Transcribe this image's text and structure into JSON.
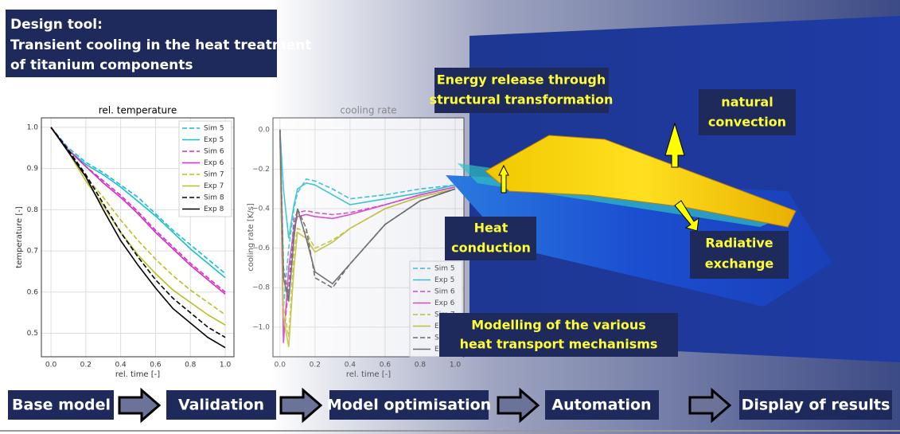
{
  "header": {
    "lines": [
      "Design tool:",
      "Transient cooling in the heat treatment",
      "of titanium components"
    ]
  },
  "chart_data": [
    {
      "type": "line",
      "title": "rel. temperature",
      "x_label": "rel. time [-]",
      "y_label": "temperature [-]",
      "x": [
        0,
        0.1,
        0.2,
        0.3,
        0.4,
        0.5,
        0.6,
        0.7,
        0.8,
        0.9,
        1.0
      ],
      "xlim": [
        -0.055,
        1.05
      ],
      "ylim": [
        0.443,
        1.023
      ],
      "xticks": [
        {
          "value": 0,
          "label": "0.0"
        },
        0.2,
        0.4,
        0.6,
        0.8,
        {
          "value": 1,
          "label": "1.0"
        }
      ],
      "yticks": [
        0.5,
        0.6,
        0.7,
        0.8,
        0.9,
        {
          "value": 1,
          "label": "1.0"
        }
      ],
      "grid": true,
      "legend": "upper right",
      "series": [
        {
          "name": "Sim 5",
          "color": "#17becf",
          "dash": true,
          "values": [
            1.0,
            0.95,
            0.915,
            0.89,
            0.86,
            0.83,
            0.79,
            0.75,
            0.715,
            0.68,
            0.645
          ]
        },
        {
          "name": "Exp 5",
          "color": "#17becf",
          "dash": false,
          "values": [
            1.0,
            0.945,
            0.91,
            0.885,
            0.855,
            0.82,
            0.785,
            0.745,
            0.705,
            0.67,
            0.635
          ]
        },
        {
          "name": "Sim 6",
          "color": "#d62bc8",
          "dash": true,
          "values": [
            1.0,
            0.945,
            0.905,
            0.87,
            0.835,
            0.795,
            0.75,
            0.71,
            0.67,
            0.635,
            0.6
          ]
        },
        {
          "name": "Exp 6",
          "color": "#d62bc8",
          "dash": false,
          "values": [
            1.0,
            0.945,
            0.905,
            0.865,
            0.83,
            0.79,
            0.745,
            0.705,
            0.665,
            0.63,
            0.595
          ]
        },
        {
          "name": "Sim 7",
          "color": "#bcbd22",
          "dash": true,
          "values": [
            1.0,
            0.94,
            0.88,
            0.83,
            0.775,
            0.725,
            0.68,
            0.64,
            0.605,
            0.575,
            0.545
          ]
        },
        {
          "name": "Exp 7",
          "color": "#bcbd22",
          "dash": false,
          "values": [
            1.0,
            0.94,
            0.87,
            0.81,
            0.745,
            0.69,
            0.645,
            0.605,
            0.575,
            0.545,
            0.52
          ]
        },
        {
          "name": "Sim 8",
          "color": "#000000",
          "dash": true,
          "values": [
            1.0,
            0.945,
            0.885,
            0.815,
            0.745,
            0.685,
            0.63,
            0.585,
            0.55,
            0.515,
            0.49
          ]
        },
        {
          "name": "Exp 8",
          "color": "#000000",
          "dash": false,
          "values": [
            1.0,
            0.94,
            0.88,
            0.8,
            0.725,
            0.665,
            0.61,
            0.56,
            0.525,
            0.49,
            0.465
          ]
        }
      ]
    },
    {
      "type": "line",
      "title": "cooling rate",
      "x_label": "rel. time [-]",
      "y_label": "cooling rate [K/s]",
      "x": [
        0,
        0.02,
        0.05,
        0.08,
        0.1,
        0.15,
        0.2,
        0.3,
        0.4,
        0.6,
        0.8,
        1.0
      ],
      "xlim": [
        -0.04,
        1.05
      ],
      "ylim": [
        -1.15,
        0.06
      ],
      "xticks": [
        {
          "value": 0,
          "label": "0.0"
        },
        0.2,
        0.4,
        0.6,
        0.8,
        {
          "value": 1,
          "label": "1.0"
        }
      ],
      "yticks": [
        {
          "value": -1.0,
          "label": "−1.0"
        },
        {
          "value": -0.8,
          "label": "−0.8"
        },
        {
          "value": -0.6,
          "label": "−0.6"
        },
        {
          "value": -0.4,
          "label": "−0.4"
        },
        {
          "value": -0.2,
          "label": "−0.2"
        },
        {
          "value": 0,
          "label": "0.0"
        }
      ],
      "grid": true,
      "legend": "lower right",
      "series": [
        {
          "name": "Sim 5",
          "color": "#17becf",
          "dash": true,
          "values": [
            0,
            -0.9,
            -0.6,
            -0.4,
            -0.32,
            -0.25,
            -0.26,
            -0.3,
            -0.35,
            -0.33,
            -0.3,
            -0.28
          ]
        },
        {
          "name": "Exp 5",
          "color": "#17becf",
          "dash": false,
          "values": [
            0,
            -0.3,
            -0.55,
            -0.38,
            -0.3,
            -0.27,
            -0.28,
            -0.33,
            -0.38,
            -0.35,
            -0.32,
            -0.28
          ]
        },
        {
          "name": "Sim 6",
          "color": "#d62bc8",
          "dash": true,
          "values": [
            0,
            -1.05,
            -0.8,
            -0.45,
            -0.42,
            -0.41,
            -0.42,
            -0.43,
            -0.42,
            -0.38,
            -0.33,
            -0.29
          ]
        },
        {
          "name": "Exp 6",
          "color": "#d62bc8",
          "dash": false,
          "values": [
            0,
            -1.08,
            -0.7,
            -0.5,
            -0.44,
            -0.43,
            -0.44,
            -0.45,
            -0.43,
            -0.38,
            -0.33,
            -0.29
          ]
        },
        {
          "name": "Sim 7",
          "color": "#bcbd22",
          "dash": true,
          "values": [
            0,
            -0.9,
            -1.05,
            -0.62,
            -0.5,
            -0.52,
            -0.6,
            -0.56,
            -0.5,
            -0.4,
            -0.34,
            -0.3
          ]
        },
        {
          "name": "Exp 7",
          "color": "#bcbd22",
          "dash": false,
          "values": [
            0,
            -0.95,
            -1.1,
            -0.7,
            -0.52,
            -0.55,
            -0.62,
            -0.57,
            -0.5,
            -0.4,
            -0.34,
            -0.3
          ]
        },
        {
          "name": "Sim 8",
          "color": "#555555",
          "dash": true,
          "values": [
            0,
            -0.7,
            -0.85,
            -0.5,
            -0.4,
            -0.5,
            -0.75,
            -0.8,
            -0.68,
            -0.48,
            -0.36,
            -0.3
          ]
        },
        {
          "name": "Exp 8",
          "color": "#555555",
          "dash": false,
          "values": [
            0,
            -0.75,
            -0.87,
            -0.55,
            -0.4,
            -0.55,
            -0.72,
            -0.78,
            -0.68,
            -0.48,
            -0.36,
            -0.3
          ]
        }
      ]
    }
  ],
  "labels": {
    "energy": [
      "Energy release through",
      "structural transformation"
    ],
    "convection": [
      "natural",
      "convection"
    ],
    "conduction": [
      "Heat",
      "conduction"
    ],
    "radiation": [
      "Radiative",
      "exchange"
    ],
    "modelling": [
      "Modelling of the various",
      "heat transport mechanisms"
    ]
  },
  "steps": [
    "Base model",
    "Validation",
    "Model optimisation",
    "Automation",
    "Display of results"
  ]
}
